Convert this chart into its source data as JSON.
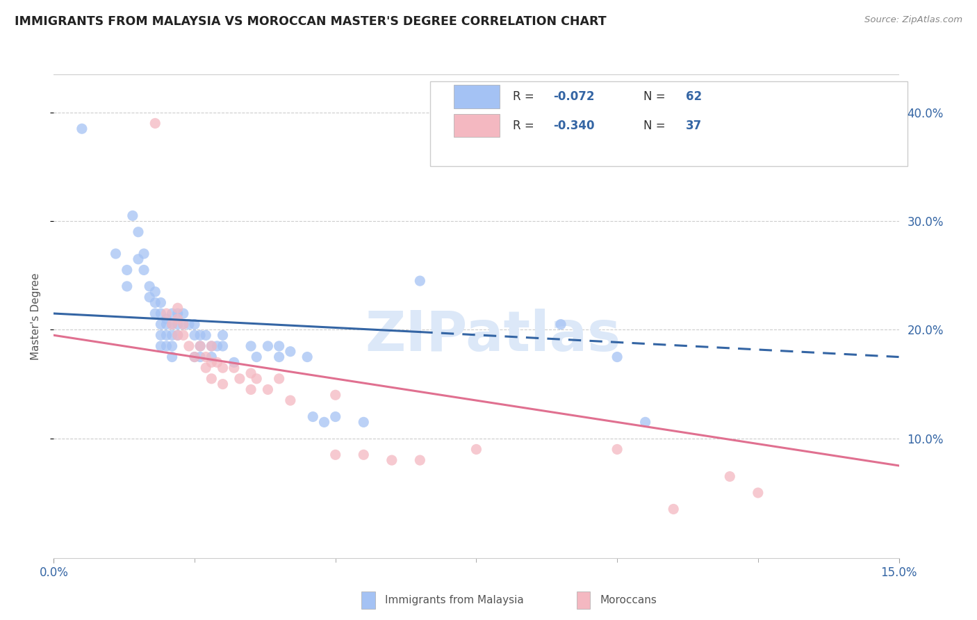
{
  "title": "IMMIGRANTS FROM MALAYSIA VS MOROCCAN MASTER'S DEGREE CORRELATION CHART",
  "source": "Source: ZipAtlas.com",
  "ylabel": "Master's Degree",
  "yaxis_tick_vals": [
    0.1,
    0.2,
    0.3,
    0.4
  ],
  "xlim": [
    0.0,
    0.15
  ],
  "ylim": [
    -0.01,
    0.435
  ],
  "legend_label1": "Immigrants from Malaysia",
  "legend_label2": "Moroccans",
  "R1": "-0.072",
  "N1": "62",
  "R2": "-0.340",
  "N2": "37",
  "blue_color": "#a4c2f4",
  "pink_color": "#f4b8c1",
  "blue_line_color": "#3465a4",
  "pink_line_color": "#e07090",
  "text_blue": "#3465a4",
  "blue_scatter": [
    [
      0.005,
      0.385
    ],
    [
      0.011,
      0.27
    ],
    [
      0.013,
      0.24
    ],
    [
      0.013,
      0.255
    ],
    [
      0.014,
      0.305
    ],
    [
      0.015,
      0.29
    ],
    [
      0.015,
      0.265
    ],
    [
      0.016,
      0.27
    ],
    [
      0.016,
      0.255
    ],
    [
      0.017,
      0.24
    ],
    [
      0.017,
      0.23
    ],
    [
      0.018,
      0.235
    ],
    [
      0.018,
      0.225
    ],
    [
      0.018,
      0.215
    ],
    [
      0.019,
      0.225
    ],
    [
      0.019,
      0.215
    ],
    [
      0.019,
      0.205
    ],
    [
      0.019,
      0.195
    ],
    [
      0.019,
      0.185
    ],
    [
      0.02,
      0.21
    ],
    [
      0.02,
      0.205
    ],
    [
      0.02,
      0.195
    ],
    [
      0.02,
      0.185
    ],
    [
      0.021,
      0.215
    ],
    [
      0.021,
      0.205
    ],
    [
      0.021,
      0.195
    ],
    [
      0.021,
      0.185
    ],
    [
      0.021,
      0.175
    ],
    [
      0.022,
      0.215
    ],
    [
      0.022,
      0.205
    ],
    [
      0.022,
      0.195
    ],
    [
      0.023,
      0.215
    ],
    [
      0.023,
      0.205
    ],
    [
      0.024,
      0.205
    ],
    [
      0.025,
      0.205
    ],
    [
      0.025,
      0.195
    ],
    [
      0.025,
      0.175
    ],
    [
      0.026,
      0.195
    ],
    [
      0.026,
      0.185
    ],
    [
      0.026,
      0.175
    ],
    [
      0.027,
      0.195
    ],
    [
      0.028,
      0.185
    ],
    [
      0.028,
      0.175
    ],
    [
      0.029,
      0.185
    ],
    [
      0.03,
      0.195
    ],
    [
      0.03,
      0.185
    ],
    [
      0.032,
      0.17
    ],
    [
      0.035,
      0.185
    ],
    [
      0.036,
      0.175
    ],
    [
      0.038,
      0.185
    ],
    [
      0.04,
      0.175
    ],
    [
      0.04,
      0.185
    ],
    [
      0.042,
      0.18
    ],
    [
      0.045,
      0.175
    ],
    [
      0.046,
      0.12
    ],
    [
      0.048,
      0.115
    ],
    [
      0.05,
      0.12
    ],
    [
      0.055,
      0.115
    ],
    [
      0.065,
      0.245
    ],
    [
      0.09,
      0.205
    ],
    [
      0.1,
      0.175
    ],
    [
      0.105,
      0.115
    ]
  ],
  "pink_scatter": [
    [
      0.018,
      0.39
    ],
    [
      0.02,
      0.215
    ],
    [
      0.021,
      0.205
    ],
    [
      0.022,
      0.22
    ],
    [
      0.022,
      0.21
    ],
    [
      0.022,
      0.195
    ],
    [
      0.023,
      0.205
    ],
    [
      0.023,
      0.195
    ],
    [
      0.024,
      0.185
    ],
    [
      0.025,
      0.175
    ],
    [
      0.026,
      0.185
    ],
    [
      0.027,
      0.175
    ],
    [
      0.027,
      0.165
    ],
    [
      0.028,
      0.185
    ],
    [
      0.028,
      0.17
    ],
    [
      0.028,
      0.155
    ],
    [
      0.029,
      0.17
    ],
    [
      0.03,
      0.165
    ],
    [
      0.03,
      0.15
    ],
    [
      0.032,
      0.165
    ],
    [
      0.033,
      0.155
    ],
    [
      0.035,
      0.16
    ],
    [
      0.035,
      0.145
    ],
    [
      0.036,
      0.155
    ],
    [
      0.038,
      0.145
    ],
    [
      0.04,
      0.155
    ],
    [
      0.042,
      0.135
    ],
    [
      0.05,
      0.14
    ],
    [
      0.05,
      0.085
    ],
    [
      0.055,
      0.085
    ],
    [
      0.06,
      0.08
    ],
    [
      0.065,
      0.08
    ],
    [
      0.075,
      0.09
    ],
    [
      0.1,
      0.09
    ],
    [
      0.11,
      0.035
    ],
    [
      0.12,
      0.065
    ],
    [
      0.125,
      0.05
    ]
  ],
  "blue_trendline_solid": [
    [
      0.0,
      0.215
    ],
    [
      0.065,
      0.198
    ]
  ],
  "blue_trendline_dashed": [
    [
      0.065,
      0.198
    ],
    [
      0.15,
      0.175
    ]
  ],
  "pink_trendline": [
    [
      0.0,
      0.195
    ],
    [
      0.15,
      0.075
    ]
  ],
  "watermark": "ZIPatlas",
  "watermark_color": "#dce8f8",
  "grid_color": "#cccccc",
  "xtick_color": "#3465a4",
  "ytick_color": "#3465a4"
}
